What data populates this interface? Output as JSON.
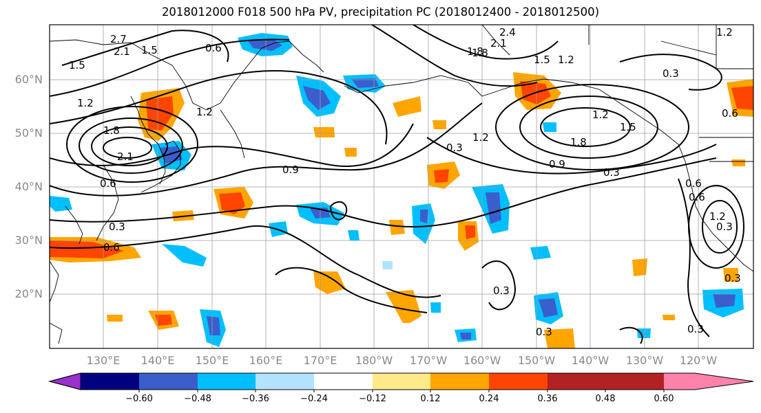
{
  "title": "2018012000 F018 500 hPa PV, precipitation PC (2018012400 - 2018012500)",
  "lat_labels": [
    "60°N",
    "50°N",
    "40°N",
    "30°N",
    "20°N"
  ],
  "lon_labels": [
    "130°E",
    "140°E",
    "150°E",
    "160°E",
    "170°E",
    "180°W",
    "170°W",
    "160°W",
    "150°W",
    "140°W",
    "130°W",
    "120°W"
  ],
  "colorbar": {
    "ticks": [
      "−0.60",
      "−0.48",
      "−0.36",
      "−0.24",
      "−0.12",
      "0.12",
      "0.24",
      "0.36",
      "0.48",
      "0.60"
    ],
    "colors": [
      "#9932cc",
      "#000080",
      "#3a5fcd",
      "#00bfff",
      "#b2e2ff",
      "#ffffff",
      "#ffea8a",
      "#ffa500",
      "#ff4500",
      "#b22222",
      "#ff82ab"
    ]
  },
  "contour_labels": [
    "2.7",
    "2.1",
    "1.5",
    "1.5",
    "1.2",
    "1.8",
    "2.1",
    "0.6",
    "0.6",
    "0.3",
    "0.6",
    "1.2",
    "0.9",
    "0.3",
    "1.8",
    "2.4",
    "2.1",
    "1.8",
    "1.5",
    "1.2",
    "0.3",
    "1.2",
    "1.2",
    "1.2",
    "1.5",
    "1.8",
    "0.9",
    "0.3",
    "0.6",
    "0.3",
    "0.3",
    "0.6",
    "0.3",
    "0.3",
    "0.3",
    "1.2",
    "0.6"
  ]
}
